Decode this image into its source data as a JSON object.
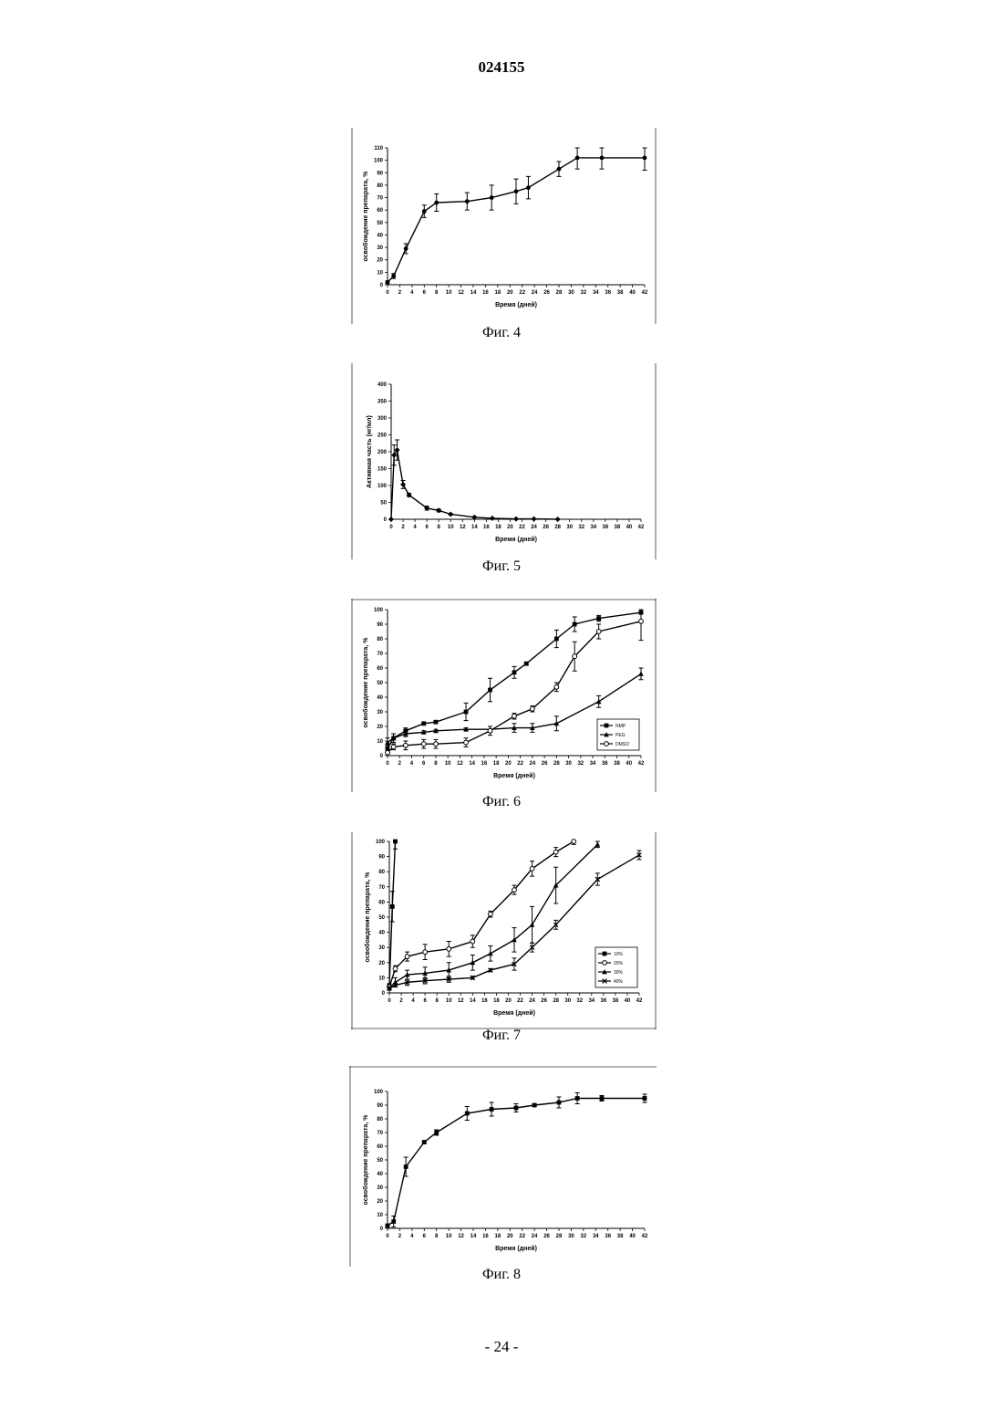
{
  "header": {
    "doc_number": "024155"
  },
  "footer": {
    "page_number": "- 24 -"
  },
  "chart_data": [
    {
      "type": "line",
      "caption": "Фиг. 4",
      "xlabel": "Время (дней)",
      "ylabel": "освобождение препарата, %",
      "xlim": [
        0,
        42
      ],
      "ylim": [
        0,
        110
      ],
      "xticks": [
        0,
        2,
        4,
        6,
        8,
        10,
        12,
        14,
        16,
        18,
        20,
        22,
        24,
        26,
        28,
        30,
        32,
        34,
        36,
        38,
        40,
        42
      ],
      "yticks": [
        0,
        10,
        20,
        30,
        40,
        50,
        60,
        70,
        80,
        90,
        100,
        110
      ],
      "grid": false,
      "series": [
        {
          "marker": "circle",
          "x": [
            0,
            1,
            3,
            6,
            8,
            13,
            17,
            21,
            23,
            28,
            31,
            35,
            42
          ],
          "y": [
            2,
            7,
            29,
            59,
            66,
            67,
            70,
            75,
            78,
            93,
            102,
            102,
            102
          ],
          "err": [
            1,
            2,
            4,
            5,
            7,
            7,
            10,
            10,
            9,
            6,
            9,
            9,
            10
          ]
        }
      ]
    },
    {
      "type": "line",
      "caption": "Фиг. 5",
      "xlabel": "Время (дней)",
      "ylabel": "Активная часть (нг/мл)",
      "xlim": [
        0,
        42
      ],
      "ylim": [
        0,
        400
      ],
      "xticks": [
        0,
        2,
        4,
        6,
        8,
        10,
        12,
        14,
        16,
        18,
        20,
        22,
        24,
        26,
        28,
        30,
        32,
        34,
        36,
        38,
        40,
        42
      ],
      "yticks": [
        0,
        50,
        100,
        150,
        200,
        250,
        300,
        350,
        400
      ],
      "grid": false,
      "series": [
        {
          "marker": "diamond",
          "x": [
            0,
            0.5,
            1,
            2,
            3,
            6,
            8,
            10,
            14,
            17,
            21,
            24,
            28
          ],
          "y": [
            0,
            190,
            205,
            103,
            72,
            33,
            26,
            15,
            6,
            3,
            1,
            1,
            0
          ],
          "err": [
            0,
            30,
            30,
            12,
            5,
            6,
            4,
            2,
            1,
            1,
            0,
            0,
            0
          ]
        }
      ]
    },
    {
      "type": "line",
      "caption": "Фиг. 6",
      "xlabel": "Время (дней)",
      "ylabel": "освобождение препарата, %",
      "xlim": [
        0,
        42
      ],
      "ylim": [
        0,
        100
      ],
      "xticks": [
        0,
        2,
        4,
        6,
        8,
        10,
        12,
        14,
        16,
        18,
        20,
        22,
        24,
        26,
        28,
        30,
        32,
        34,
        36,
        38,
        40,
        42
      ],
      "yticks": [
        0,
        10,
        20,
        30,
        40,
        50,
        60,
        70,
        80,
        90,
        100
      ],
      "grid": false,
      "legend": "bottom-right",
      "series": [
        {
          "name": "NMP",
          "marker": "square",
          "x": [
            0,
            1,
            3,
            6,
            8,
            13,
            17,
            21,
            23,
            28,
            31,
            35,
            42
          ],
          "y": [
            5,
            12,
            17,
            22,
            23,
            30,
            45,
            57,
            63,
            80,
            90,
            94,
            98
          ],
          "err": [
            2,
            3,
            2,
            1,
            1,
            6,
            8,
            4,
            1,
            6,
            5,
            2,
            1
          ]
        },
        {
          "name": "PEG",
          "marker": "triangle",
          "x": [
            0,
            1,
            3,
            6,
            8,
            13,
            17,
            21,
            24,
            28,
            35,
            42
          ],
          "y": [
            9,
            12,
            15,
            16,
            17,
            18,
            18,
            19,
            19,
            22,
            37,
            56
          ],
          "err": [
            3,
            3,
            2,
            1,
            1,
            1,
            2,
            3,
            3,
            5,
            4,
            4
          ]
        },
        {
          "name": "DMSO",
          "marker": "circle-open",
          "x": [
            0,
            1,
            3,
            6,
            8,
            13,
            17,
            21,
            24,
            28,
            31,
            35,
            42
          ],
          "y": [
            2,
            6,
            7,
            8,
            8,
            9,
            17,
            27,
            32,
            47,
            68,
            85,
            92
          ],
          "err": [
            1,
            2,
            3,
            3,
            3,
            3,
            3,
            2,
            2,
            3,
            10,
            5,
            13
          ]
        }
      ]
    },
    {
      "type": "line",
      "caption": "Фиг. 7",
      "xlabel": "Время (дней)",
      "ylabel": "освобождение препарата, %",
      "xlim": [
        0,
        42
      ],
      "ylim": [
        0,
        100
      ],
      "xticks": [
        0,
        2,
        4,
        6,
        8,
        10,
        12,
        14,
        16,
        18,
        20,
        22,
        24,
        26,
        28,
        30,
        32,
        34,
        36,
        38,
        40,
        42
      ],
      "yticks": [
        0,
        10,
        20,
        30,
        40,
        50,
        60,
        70,
        80,
        90,
        100
      ],
      "grid": false,
      "legend": "bottom-right",
      "series": [
        {
          "name": "10%",
          "marker": "square",
          "x": [
            0,
            0.5,
            1
          ],
          "y": [
            5,
            57,
            100
          ],
          "err": [
            1,
            10,
            5
          ]
        },
        {
          "name": "20%",
          "marker": "circle-open",
          "x": [
            0,
            1,
            3,
            6,
            10,
            14,
            17,
            21,
            24,
            28,
            31
          ],
          "y": [
            4,
            16,
            24,
            27,
            29,
            34,
            52,
            68,
            82,
            93,
            100
          ],
          "err": [
            1,
            2,
            3,
            5,
            5,
            4,
            2,
            3,
            5,
            3,
            2
          ]
        },
        {
          "name": "30%",
          "marker": "triangle",
          "x": [
            0,
            1,
            3,
            6,
            10,
            14,
            17,
            21,
            24,
            28,
            35
          ],
          "y": [
            3,
            7,
            12,
            13,
            15,
            20,
            26,
            35,
            45,
            71,
            98
          ],
          "err": [
            1,
            3,
            3,
            4,
            5,
            5,
            5,
            8,
            12,
            12,
            2
          ]
        },
        {
          "name": "40%",
          "marker": "cross",
          "x": [
            0,
            1,
            3,
            6,
            10,
            14,
            17,
            21,
            24,
            28,
            35,
            42
          ],
          "y": [
            3,
            5,
            7,
            8,
            9,
            10,
            15,
            19,
            30,
            45,
            75,
            91
          ],
          "err": [
            1,
            1,
            2,
            2,
            2,
            1,
            1,
            4,
            3,
            3,
            4,
            3
          ]
        }
      ]
    },
    {
      "type": "line",
      "caption": "Фиг. 8",
      "xlabel": "Время (дней)",
      "ylabel": "освобождение препарата, %",
      "xlim": [
        0,
        42
      ],
      "ylim": [
        0,
        100
      ],
      "xticks": [
        0,
        2,
        4,
        6,
        8,
        10,
        12,
        14,
        16,
        18,
        20,
        22,
        24,
        26,
        28,
        30,
        32,
        34,
        36,
        38,
        40,
        42
      ],
      "yticks": [
        0,
        10,
        20,
        30,
        40,
        50,
        60,
        70,
        80,
        90,
        100
      ],
      "grid": false,
      "series": [
        {
          "marker": "square",
          "x": [
            0,
            1,
            3,
            6,
            8,
            13,
            17,
            21,
            24,
            28,
            31,
            35,
            42
          ],
          "y": [
            2,
            5,
            45,
            63,
            70,
            84,
            87,
            88,
            90,
            92,
            95,
            95,
            95
          ],
          "err": [
            1,
            4,
            7,
            1,
            2,
            5,
            5,
            3,
            1,
            4,
            4,
            2,
            3
          ]
        }
      ]
    }
  ]
}
